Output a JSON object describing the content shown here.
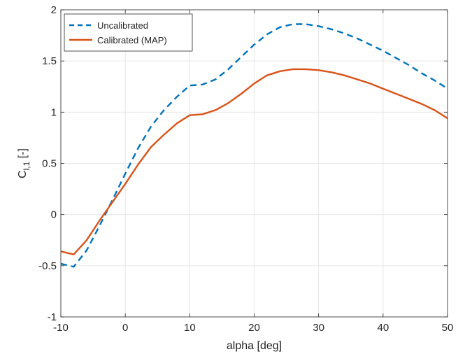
{
  "chart_data": {
    "type": "line",
    "xlabel": "alpha [deg]",
    "ylabel": {
      "main": "C",
      "sub": "l,1",
      "suffix": " [-]"
    },
    "xlim": [
      -10,
      50
    ],
    "ylim": [
      -1,
      2
    ],
    "xticks": [
      -10,
      0,
      10,
      20,
      30,
      40,
      50
    ],
    "yticks": [
      -1,
      -0.5,
      0,
      0.5,
      1,
      1.5,
      2
    ],
    "xtick_labels": [
      "-10",
      "0",
      "10",
      "20",
      "30",
      "40",
      "50"
    ],
    "ytick_labels": [
      "-1",
      "-0.5",
      "0",
      "0.5",
      "1",
      "1.5",
      "2"
    ],
    "grid": true,
    "legend_position": "top-left",
    "series": [
      {
        "name": "Uncalibrated",
        "color": "#0072BD",
        "style": "dashed",
        "x": [
          -10,
          -8,
          -6,
          -4,
          -2,
          0,
          2,
          4,
          6,
          8,
          10,
          12,
          14,
          16,
          18,
          20,
          22,
          24,
          26,
          28,
          30,
          32,
          34,
          36,
          38,
          40,
          42,
          44,
          46,
          48,
          50
        ],
        "y": [
          -0.48,
          -0.51,
          -0.35,
          -0.11,
          0.14,
          0.4,
          0.65,
          0.86,
          1.02,
          1.15,
          1.26,
          1.27,
          1.32,
          1.42,
          1.54,
          1.66,
          1.76,
          1.83,
          1.86,
          1.86,
          1.84,
          1.81,
          1.77,
          1.72,
          1.66,
          1.6,
          1.53,
          1.46,
          1.38,
          1.31,
          1.23
        ]
      },
      {
        "name": "Calibrated (MAP)",
        "color": "#D95319",
        "style": "solid",
        "x": [
          -10,
          -8,
          -6,
          -4,
          -2,
          0,
          2,
          4,
          6,
          8,
          10,
          12,
          14,
          16,
          18,
          20,
          22,
          24,
          26,
          28,
          30,
          32,
          34,
          36,
          38,
          40,
          42,
          44,
          46,
          48,
          50
        ],
        "y": [
          -0.36,
          -0.39,
          -0.25,
          -0.06,
          0.12,
          0.3,
          0.49,
          0.66,
          0.78,
          0.89,
          0.97,
          0.98,
          1.02,
          1.09,
          1.18,
          1.28,
          1.36,
          1.4,
          1.42,
          1.42,
          1.41,
          1.39,
          1.36,
          1.32,
          1.28,
          1.23,
          1.18,
          1.13,
          1.08,
          1.02,
          0.94
        ]
      }
    ]
  }
}
